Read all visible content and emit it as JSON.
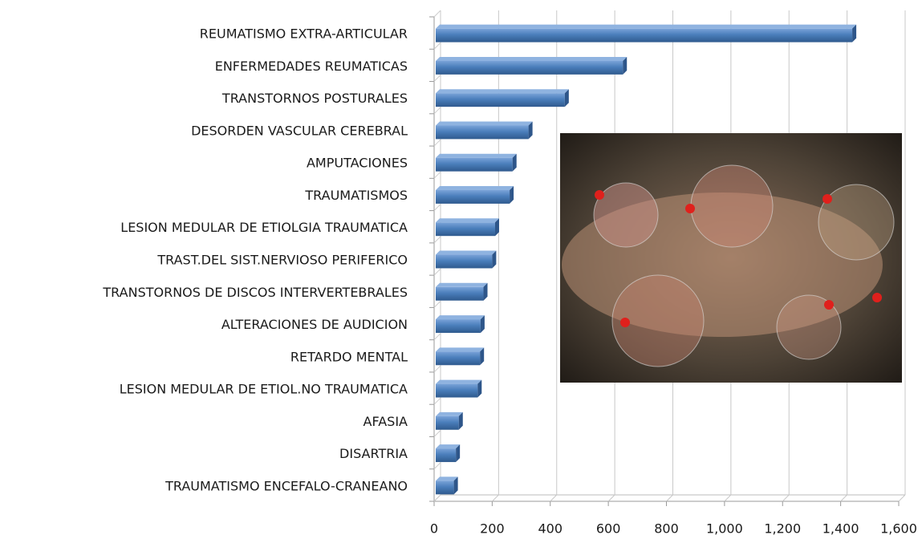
{
  "chart_data": {
    "type": "hbar",
    "categories": [
      "REUMATISMO EXTRA-ARTICULAR",
      "ENFERMEDADES REUMATICAS",
      "TRANSTORNOS POSTURALES",
      "DESORDEN VASCULAR CEREBRAL",
      "AMPUTACIONES",
      "TRAUMATISMOS",
      "LESION MEDULAR DE ETIOLGIA TRAUMATICA",
      "TRAST.DEL SIST.NERVIOSO PERIFERICO",
      "TRANSTORNOS DE DISCOS INTERVERTEBRALES",
      "ALTERACIONES DE AUDICION",
      "RETARDO MENTAL",
      "LESION MEDULAR DE ETIOL.NO TRAUMATICA",
      "AFASIA",
      "DISARTRIA",
      "TRAUMATISMO ENCEFALO-CRANEANO"
    ],
    "values": [
      1440,
      650,
      450,
      325,
      270,
      260,
      210,
      200,
      170,
      160,
      158,
      150,
      85,
      75,
      68
    ],
    "color": "#4a7ebb",
    "xlim": [
      0,
      1600
    ],
    "xticks": [
      0,
      200,
      400,
      600,
      800,
      {
        "value": 1000,
        "label": "1,000"
      },
      {
        "value": 1200,
        "label": "1,200"
      },
      {
        "value": 1400,
        "label": "1,400"
      },
      {
        "value": 1600,
        "label": "1,600"
      }
    ],
    "grid": true
  }
}
